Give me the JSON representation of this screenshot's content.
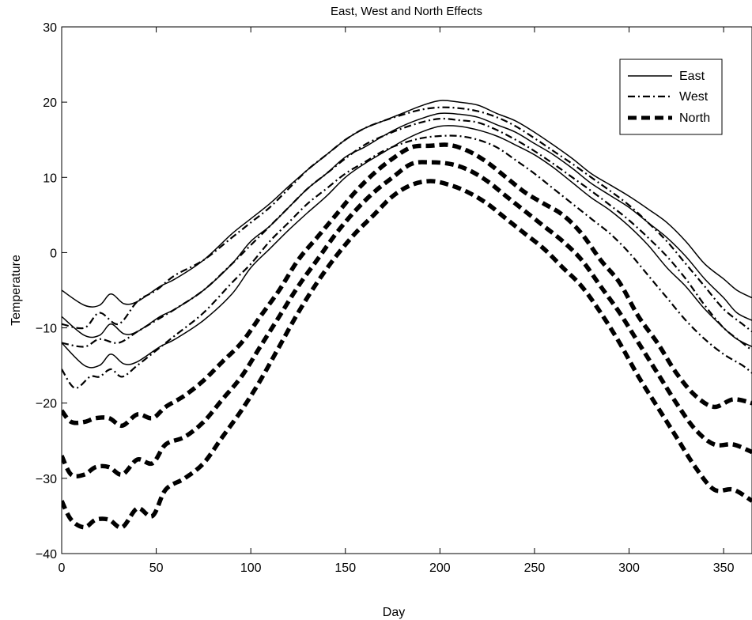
{
  "chart_data": {
    "type": "line",
    "title": "East, West and North Effects",
    "xlabel": "Day",
    "ylabel": "Temperature",
    "xlim": [
      0,
      365
    ],
    "ylim": [
      -40,
      30
    ],
    "xticks": [
      0,
      50,
      100,
      150,
      200,
      250,
      300,
      350
    ],
    "yticks": [
      -40,
      -30,
      -20,
      -10,
      0,
      10,
      20,
      30
    ],
    "grid": false,
    "legend_position": "top-right",
    "legend": [
      {
        "label": "East",
        "style": "solid"
      },
      {
        "label": "West",
        "style": "dashdot"
      },
      {
        "label": "North",
        "style": "dashed"
      }
    ],
    "series": [
      {
        "group": "East",
        "style": "solid",
        "x": [
          0,
          12,
          20,
          26,
          33,
          40,
          52,
          60,
          75,
          90,
          100,
          110,
          120,
          130,
          140,
          150,
          160,
          170,
          180,
          190,
          200,
          210,
          220,
          230,
          240,
          250,
          260,
          270,
          280,
          290,
          300,
          310,
          320,
          330,
          340,
          350,
          357,
          365
        ],
        "y": [
          -5,
          -7,
          -7,
          -5.5,
          -6.8,
          -6.5,
          -4.5,
          -3.5,
          -1,
          2.5,
          4.5,
          6.5,
          8.8,
          11,
          13,
          15,
          16.5,
          17.5,
          18.5,
          19.5,
          20.2,
          20,
          19.6,
          18.5,
          17.5,
          16,
          14.3,
          12.5,
          10.5,
          9,
          7.5,
          5.8,
          4,
          1.5,
          -1.5,
          -3.5,
          -5,
          -6
        ]
      },
      {
        "group": "East",
        "style": "solid",
        "x": [
          0,
          12,
          20,
          26,
          33,
          40,
          52,
          60,
          75,
          90,
          100,
          110,
          120,
          130,
          140,
          150,
          160,
          170,
          180,
          190,
          200,
          210,
          220,
          230,
          240,
          250,
          260,
          270,
          280,
          290,
          300,
          310,
          320,
          330,
          340,
          350,
          357,
          365
        ],
        "y": [
          -8.5,
          -11,
          -11,
          -9.5,
          -10.8,
          -10.5,
          -8.5,
          -7.5,
          -5,
          -1.5,
          1.5,
          3.5,
          6,
          8.5,
          10.5,
          12.7,
          14,
          15.5,
          16.8,
          17.8,
          18.5,
          18.4,
          18,
          17,
          16,
          14.5,
          13,
          11.2,
          9.2,
          7.6,
          6,
          4,
          2,
          -0.5,
          -3.5,
          -6,
          -8,
          -9
        ]
      },
      {
        "group": "East",
        "style": "solid",
        "x": [
          0,
          12,
          20,
          26,
          33,
          40,
          52,
          60,
          75,
          90,
          100,
          110,
          120,
          130,
          140,
          150,
          160,
          170,
          180,
          190,
          200,
          210,
          220,
          230,
          240,
          250,
          260,
          270,
          280,
          290,
          300,
          310,
          320,
          330,
          340,
          350,
          357,
          365
        ],
        "y": [
          -12,
          -15,
          -15,
          -13.5,
          -14.8,
          -14.5,
          -12.5,
          -11.5,
          -9,
          -5.5,
          -2,
          0.5,
          3,
          5.3,
          7.5,
          10,
          11.8,
          13.3,
          14.8,
          16,
          16.8,
          16.8,
          16.3,
          15.5,
          14.3,
          13,
          11.3,
          9.3,
          7.3,
          5.6,
          3.5,
          1,
          -2,
          -4.5,
          -7.5,
          -10,
          -11.5,
          -12.5
        ]
      },
      {
        "group": "West",
        "style": "dashdot",
        "x": [
          0,
          12,
          20,
          30,
          40,
          50,
          60,
          75,
          90,
          100,
          110,
          120,
          130,
          140,
          150,
          160,
          170,
          180,
          190,
          200,
          210,
          220,
          230,
          240,
          250,
          260,
          270,
          280,
          290,
          300,
          310,
          320,
          330,
          340,
          350,
          360,
          365
        ],
        "y": [
          -9.5,
          -10,
          -8,
          -9.5,
          -6.5,
          -5,
          -3,
          -1,
          2,
          4,
          6,
          8.5,
          11,
          13,
          15,
          16.5,
          17.5,
          18.3,
          19,
          19.3,
          19.2,
          18.8,
          18,
          16.8,
          15.2,
          13.5,
          11.8,
          10,
          8.2,
          6.3,
          4,
          1.5,
          -1.5,
          -4.5,
          -7.5,
          -9.5,
          -10.5
        ]
      },
      {
        "group": "West",
        "style": "dashdot",
        "x": [
          0,
          12,
          20,
          30,
          40,
          50,
          60,
          75,
          90,
          100,
          110,
          120,
          130,
          140,
          150,
          160,
          170,
          180,
          190,
          200,
          210,
          220,
          230,
          240,
          250,
          260,
          270,
          280,
          290,
          300,
          310,
          320,
          330,
          340,
          350,
          360,
          365
        ],
        "y": [
          -12,
          -12.5,
          -11.5,
          -12,
          -10.5,
          -9,
          -7.5,
          -5,
          -1.5,
          1,
          3.5,
          6,
          8.5,
          10.5,
          12.5,
          14.3,
          15.5,
          16.5,
          17.3,
          17.8,
          17.6,
          17.3,
          16.3,
          15,
          13.5,
          11.8,
          10,
          8.2,
          6.3,
          4.3,
          2,
          -0.5,
          -3.5,
          -7,
          -10,
          -12,
          -13
        ]
      },
      {
        "group": "West",
        "style": "dashdot",
        "x": [
          0,
          7,
          15,
          20,
          26,
          32,
          40,
          50,
          60,
          75,
          90,
          100,
          110,
          120,
          130,
          140,
          150,
          160,
          170,
          180,
          190,
          200,
          210,
          220,
          230,
          240,
          250,
          260,
          270,
          280,
          290,
          300,
          310,
          320,
          330,
          340,
          350,
          360,
          365
        ],
        "y": [
          -15.5,
          -18,
          -16.5,
          -16.5,
          -15.5,
          -16.5,
          -15,
          -13,
          -11,
          -8,
          -4,
          -1.5,
          1.5,
          4,
          6.5,
          8.5,
          10.5,
          12,
          13.5,
          14.5,
          15.2,
          15.5,
          15.5,
          15,
          14,
          12.3,
          10.5,
          8.5,
          6.5,
          4.5,
          2.5,
          0,
          -3,
          -6,
          -9,
          -11.5,
          -13.5,
          -15,
          -16
        ]
      },
      {
        "group": "North",
        "style": "dashed",
        "x": [
          0,
          5,
          12,
          18,
          25,
          32,
          40,
          48,
          55,
          65,
          75,
          85,
          95,
          105,
          115,
          125,
          135,
          145,
          155,
          165,
          175,
          185,
          195,
          205,
          215,
          225,
          235,
          245,
          255,
          265,
          275,
          285,
          295,
          305,
          315,
          325,
          335,
          345,
          355,
          365
        ],
        "y": [
          -21,
          -22.5,
          -22.5,
          -22,
          -22,
          -23,
          -21.5,
          -22,
          -20.5,
          -19,
          -17,
          -14.5,
          -12,
          -8.5,
          -5,
          -1,
          2,
          5,
          8,
          10.5,
          12.5,
          14,
          14.2,
          14.3,
          13.5,
          12,
          10,
          8,
          6.5,
          5,
          2.5,
          -1,
          -4,
          -8.5,
          -12,
          -16,
          -19,
          -20.5,
          -19.5,
          -20
        ]
      },
      {
        "group": "North",
        "style": "dashed",
        "x": [
          0,
          5,
          12,
          18,
          25,
          32,
          40,
          48,
          55,
          65,
          75,
          85,
          95,
          105,
          115,
          125,
          135,
          145,
          155,
          165,
          175,
          185,
          195,
          205,
          215,
          225,
          235,
          245,
          255,
          265,
          275,
          285,
          295,
          305,
          315,
          325,
          335,
          345,
          355,
          365
        ],
        "y": [
          -27,
          -29.5,
          -29.5,
          -28.5,
          -28.5,
          -29.5,
          -27.5,
          -28,
          -25.5,
          -24.5,
          -22.5,
          -19.5,
          -16.5,
          -12.5,
          -8.5,
          -4.5,
          -1,
          2.5,
          5.5,
          8,
          10,
          11.8,
          12,
          11.8,
          11,
          9.5,
          7.5,
          5.5,
          3.5,
          1.5,
          -1,
          -4.5,
          -8,
          -12,
          -16,
          -20,
          -23.5,
          -25.5,
          -25.5,
          -26.5
        ]
      },
      {
        "group": "North",
        "style": "dashed",
        "x": [
          0,
          5,
          12,
          18,
          25,
          32,
          40,
          48,
          55,
          65,
          75,
          85,
          95,
          105,
          115,
          125,
          135,
          145,
          155,
          165,
          175,
          185,
          195,
          205,
          215,
          225,
          235,
          245,
          255,
          265,
          275,
          285,
          295,
          305,
          315,
          325,
          335,
          345,
          355,
          365
        ],
        "y": [
          -33,
          -35.5,
          -36.5,
          -35.5,
          -35.5,
          -36.5,
          -34,
          -35,
          -31.5,
          -30,
          -28,
          -24.5,
          -21,
          -17,
          -12.5,
          -8,
          -4,
          -0.5,
          2.5,
          5,
          7.5,
          9,
          9.5,
          9,
          8,
          6.5,
          4.5,
          2.5,
          0.5,
          -2,
          -4.5,
          -8,
          -12,
          -16.5,
          -20.5,
          -24.5,
          -28.5,
          -31.5,
          -31.5,
          -33
        ]
      }
    ]
  }
}
